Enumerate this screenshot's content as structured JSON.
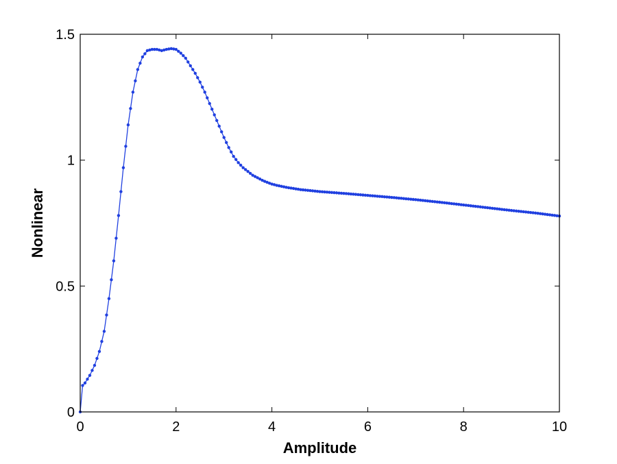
{
  "chart_data": {
    "type": "line",
    "title": "",
    "xlabel": "Amplitude",
    "ylabel": "Nonlinear",
    "xlim": [
      0,
      10
    ],
    "ylim": [
      0,
      1.5
    ],
    "xticks": [
      0,
      2,
      4,
      6,
      8,
      10
    ],
    "xtick_labels": [
      "0",
      "2",
      "4",
      "6",
      "8",
      "10"
    ],
    "yticks": [
      0,
      0.5,
      1,
      1.5
    ],
    "ytick_labels": [
      "0",
      "0.5",
      "1",
      "1.5"
    ],
    "grid": false,
    "legend": "none",
    "marker": "dot",
    "series": [
      {
        "color": "#2040e0",
        "x": [
          0,
          0.05,
          0.1,
          0.2,
          0.3,
          0.4,
          0.5,
          0.6,
          0.7,
          0.8,
          0.9,
          1.0,
          1.1,
          1.2,
          1.3,
          1.4,
          1.5,
          1.6,
          1.7,
          1.8,
          1.9,
          2.0,
          2.1,
          2.2,
          2.3,
          2.4,
          2.5,
          2.6,
          2.7,
          2.8,
          2.9,
          3.0,
          3.1,
          3.2,
          3.3,
          3.4,
          3.5,
          3.6,
          3.7,
          3.8,
          3.9,
          4.0,
          4.1,
          4.2,
          4.3,
          4.4,
          4.5,
          4.6,
          4.7,
          4.8,
          4.9,
          5.0,
          5.5,
          6.0,
          6.5,
          7.0,
          7.5,
          8.0,
          8.5,
          9.0,
          9.5,
          10.0
        ],
        "y": [
          0,
          0.105,
          0.115,
          0.145,
          0.185,
          0.24,
          0.32,
          0.45,
          0.6,
          0.78,
          0.97,
          1.14,
          1.27,
          1.36,
          1.41,
          1.435,
          1.44,
          1.44,
          1.435,
          1.44,
          1.443,
          1.44,
          1.425,
          1.405,
          1.375,
          1.345,
          1.31,
          1.27,
          1.225,
          1.18,
          1.135,
          1.09,
          1.05,
          1.015,
          0.99,
          0.97,
          0.955,
          0.94,
          0.93,
          0.92,
          0.912,
          0.905,
          0.9,
          0.896,
          0.892,
          0.889,
          0.886,
          0.883,
          0.881,
          0.879,
          0.877,
          0.875,
          0.868,
          0.86,
          0.852,
          0.843,
          0.833,
          0.822,
          0.811,
          0.8,
          0.79,
          0.778
        ]
      }
    ]
  }
}
